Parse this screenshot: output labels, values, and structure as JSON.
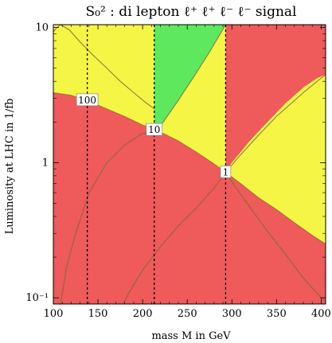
{
  "chart_data": {
    "type": "area",
    "title": "S₀² : di lepton ℓ⁺ ℓ⁺ ℓ⁻ ℓ⁻ signal",
    "xlabel": "mass M in GeV",
    "ylabel": "Luminosity at LHC in 1/fb",
    "xlim": [
      100,
      405
    ],
    "ylim": [
      0.09,
      10.5
    ],
    "yscale": "log",
    "x_ticks": [
      100,
      150,
      200,
      250,
      300,
      350,
      400
    ],
    "x_tick_labels": [
      "100",
      "150",
      "200",
      "250",
      "300",
      "350",
      "400"
    ],
    "y_major_ticks": [
      0.1,
      1,
      10
    ],
    "y_major_tick_labels": [
      "10⁻¹",
      "1",
      "10"
    ],
    "colors": {
      "red": "#ef5a5a",
      "yellow": "#f5f545",
      "green": "#5ee85e",
      "contour": "#7a6a3a"
    },
    "regions": {
      "red_boundary": {
        "x": [
          100,
          120,
          140,
          160,
          180,
          200,
          215,
          240,
          260,
          280,
          293,
          310,
          330,
          350,
          370,
          390,
          405
        ],
        "y": [
          3.3,
          3.15,
          2.85,
          2.5,
          2.2,
          1.9,
          1.75,
          1.45,
          1.2,
          0.98,
          0.85,
          0.7,
          0.55,
          0.45,
          0.36,
          0.29,
          0.25
        ]
      },
      "yellow_top_boundary": {
        "x": [
          293,
          300,
          320,
          340,
          360,
          380,
          395,
          405
        ],
        "y": [
          0.85,
          1.0,
          1.45,
          2.0,
          2.75,
          3.6,
          4.2,
          4.5
        ]
      },
      "green_region": {
        "x": [
          213,
          213,
          222,
          240,
          258,
          275,
          293,
          213
        ],
        "y": [
          10.5,
          1.7,
          1.95,
          2.9,
          4.4,
          6.6,
          10.5,
          10.5
        ]
      }
    },
    "contours": [
      {
        "x": [
          108,
          115,
          125,
          140,
          160,
          180,
          200,
          213,
          222,
          240,
          258,
          275,
          293
        ],
        "y": [
          0.09,
          0.17,
          0.3,
          0.6,
          1.0,
          1.35,
          1.65,
          1.7,
          1.95,
          2.9,
          4.4,
          6.6,
          10.5
        ]
      },
      {
        "x": [
          178,
          185,
          200,
          220,
          240,
          260,
          280,
          293,
          310,
          330,
          350,
          380,
          405
        ],
        "y": [
          0.09,
          0.11,
          0.16,
          0.24,
          0.34,
          0.46,
          0.65,
          0.85,
          1.15,
          1.6,
          2.2,
          3.3,
          4.5
        ]
      },
      {
        "x": [
          293,
          300,
          320,
          340,
          360,
          380,
          400,
          405
        ],
        "y": [
          0.85,
          0.72,
          0.47,
          0.31,
          0.21,
          0.14,
          0.1,
          0.093
        ]
      },
      {
        "x": [
          100,
          102,
          108,
          118,
          130,
          145,
          160,
          175,
          190,
          203,
          213
        ],
        "y": [
          9.2,
          9.7,
          10.5,
          9.6,
          7.8,
          6.2,
          5.0,
          4.0,
          3.3,
          2.8,
          2.5
        ]
      }
    ],
    "vertical_dashed_lines": [
      138,
      213,
      293
    ],
    "contour_labels": [
      {
        "text": "100",
        "x": 138,
        "y": 2.9
      },
      {
        "text": "10",
        "x": 213,
        "y": 1.75
      },
      {
        "text": "1",
        "x": 293,
        "y": 0.85
      }
    ]
  }
}
